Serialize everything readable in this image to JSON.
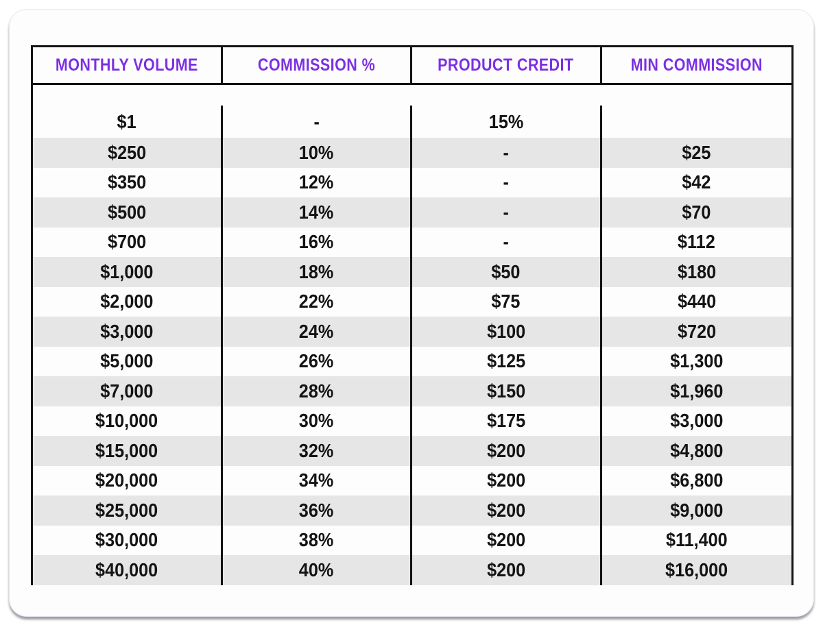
{
  "colors": {
    "page_background": "#ffffff",
    "card_background": "#fdfdfe",
    "card_border": "#e6e6ee",
    "table_border": "#131313",
    "header_text": "#7d2fe2",
    "row_stripe": "#e6e6e6",
    "text": "#141414"
  },
  "chart_data": {
    "type": "table",
    "title": "",
    "columns": [
      "MONTHLY VOLUME",
      "COMMISSION %",
      "PRODUCT CREDIT",
      "MIN COMMISSION"
    ],
    "rows": [
      [
        "$1",
        "-",
        "15%",
        ""
      ],
      [
        "$250",
        "10%",
        "-",
        "$25"
      ],
      [
        "$350",
        "12%",
        "-",
        "$42"
      ],
      [
        "$500",
        "14%",
        "-",
        "$70"
      ],
      [
        "$700",
        "16%",
        "-",
        "$112"
      ],
      [
        "$1,000",
        "18%",
        "$50",
        "$180"
      ],
      [
        "$2,000",
        "22%",
        "$75",
        "$440"
      ],
      [
        "$3,000",
        "24%",
        "$100",
        "$720"
      ],
      [
        "$5,000",
        "26%",
        "$125",
        "$1,300"
      ],
      [
        "$7,000",
        "28%",
        "$150",
        "$1,960"
      ],
      [
        "$10,000",
        "30%",
        "$175",
        "$3,000"
      ],
      [
        "$15,000",
        "32%",
        "$200",
        "$4,800"
      ],
      [
        "$20,000",
        "34%",
        "$200",
        "$6,800"
      ],
      [
        "$25,000",
        "36%",
        "$200",
        "$9,000"
      ],
      [
        "$30,000",
        "38%",
        "$200",
        "$11,400"
      ],
      [
        "$40,000",
        "40%",
        "$200",
        "$16,000"
      ]
    ],
    "layout": {
      "striped_rows": "alternating gray starting at second data row",
      "header_outlined": true,
      "column_separators": "full-height black vertical rules"
    }
  }
}
